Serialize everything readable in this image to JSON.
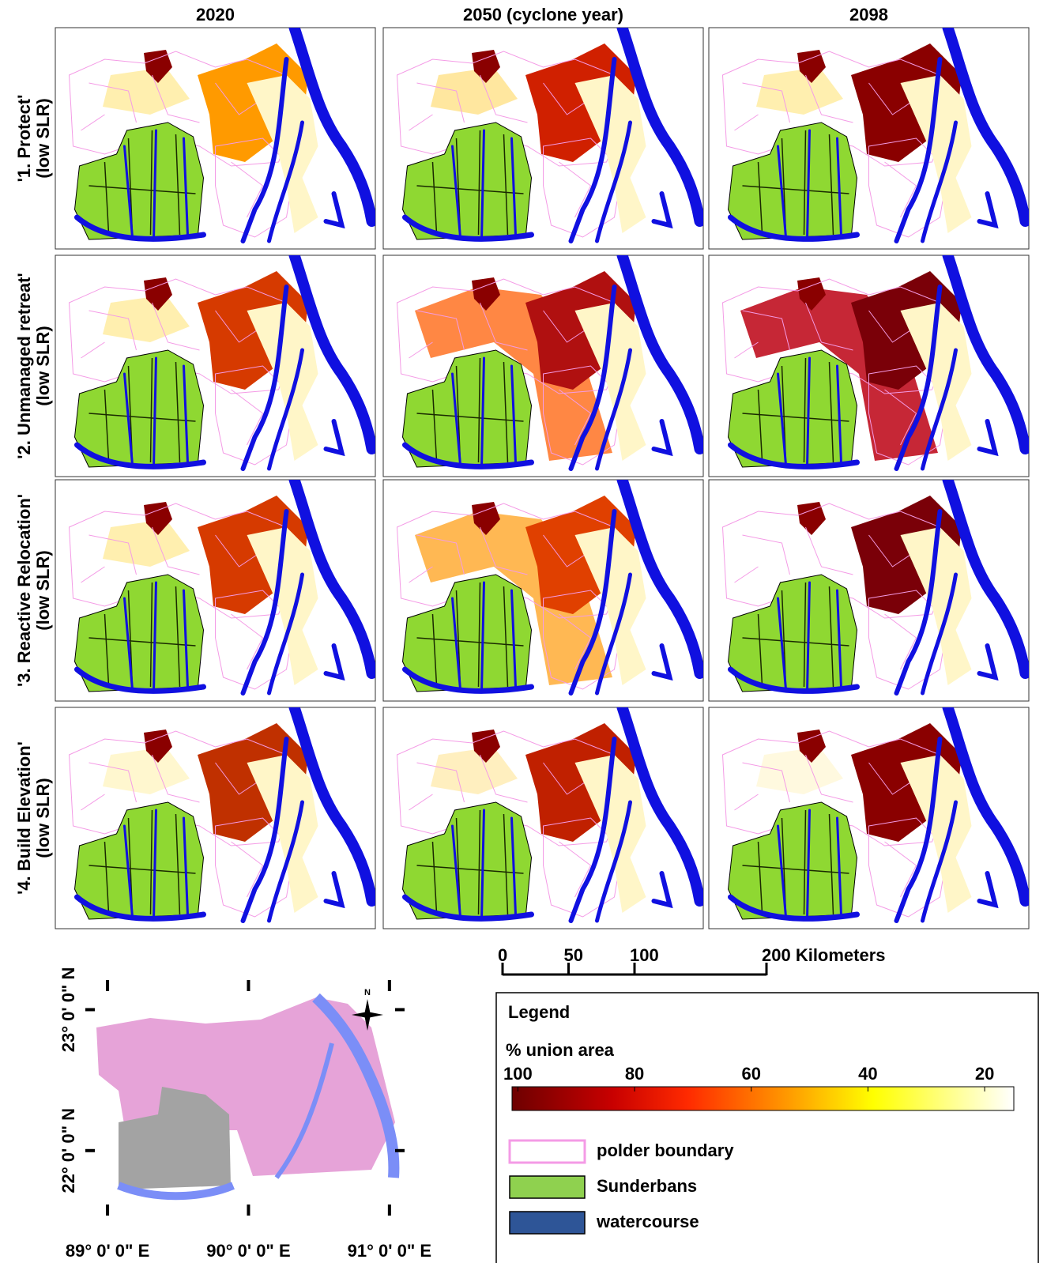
{
  "panels": {
    "columns": [
      "2020",
      "2050 (cyclone year)",
      "2098"
    ],
    "rows": [
      [
        "'1. Protect'",
        "(low SLR)"
      ],
      [
        "'2. Unmanaged retreat'",
        "(low SLR)"
      ],
      [
        "'3. Reactive Relocation'",
        "(low SLR)"
      ],
      [
        "'4. Build Elevation'",
        "(low SLR)"
      ]
    ]
  },
  "scale_bar": {
    "lim": [
      0,
      200
    ],
    "ticks": [
      0,
      50,
      100,
      {
        "value": 200,
        "label": "200 Kilometers"
      }
    ]
  },
  "inset": {
    "xlim": [
      88.91,
      91.04
    ],
    "ylim": [
      21.64,
      23.21
    ],
    "xticks": [
      {
        "value": 89,
        "label": "89° 0' 0\" E"
      },
      {
        "value": 90,
        "label": "90° 0' 0\" E"
      },
      {
        "value": 91,
        "label": "91° 0' 0\" E"
      }
    ],
    "yticks": [
      {
        "value": 23,
        "label": "23° 0' 0\" N"
      },
      {
        "value": 22,
        "label": "22° 0' 0\" N"
      }
    ],
    "north": "N"
  },
  "legend": {
    "title": "Legend",
    "colorbar": {
      "label": "% union area",
      "lim": [
        101,
        15
      ],
      "ticks": [
        100,
        80,
        60,
        40,
        20
      ]
    },
    "entries": [
      {
        "label": "polder boundary",
        "color": "#f49be6"
      },
      {
        "label": "Sunderbans",
        "color": "#8fd14f"
      },
      {
        "label": "watercourse",
        "color": "#2e5597"
      }
    ]
  }
}
